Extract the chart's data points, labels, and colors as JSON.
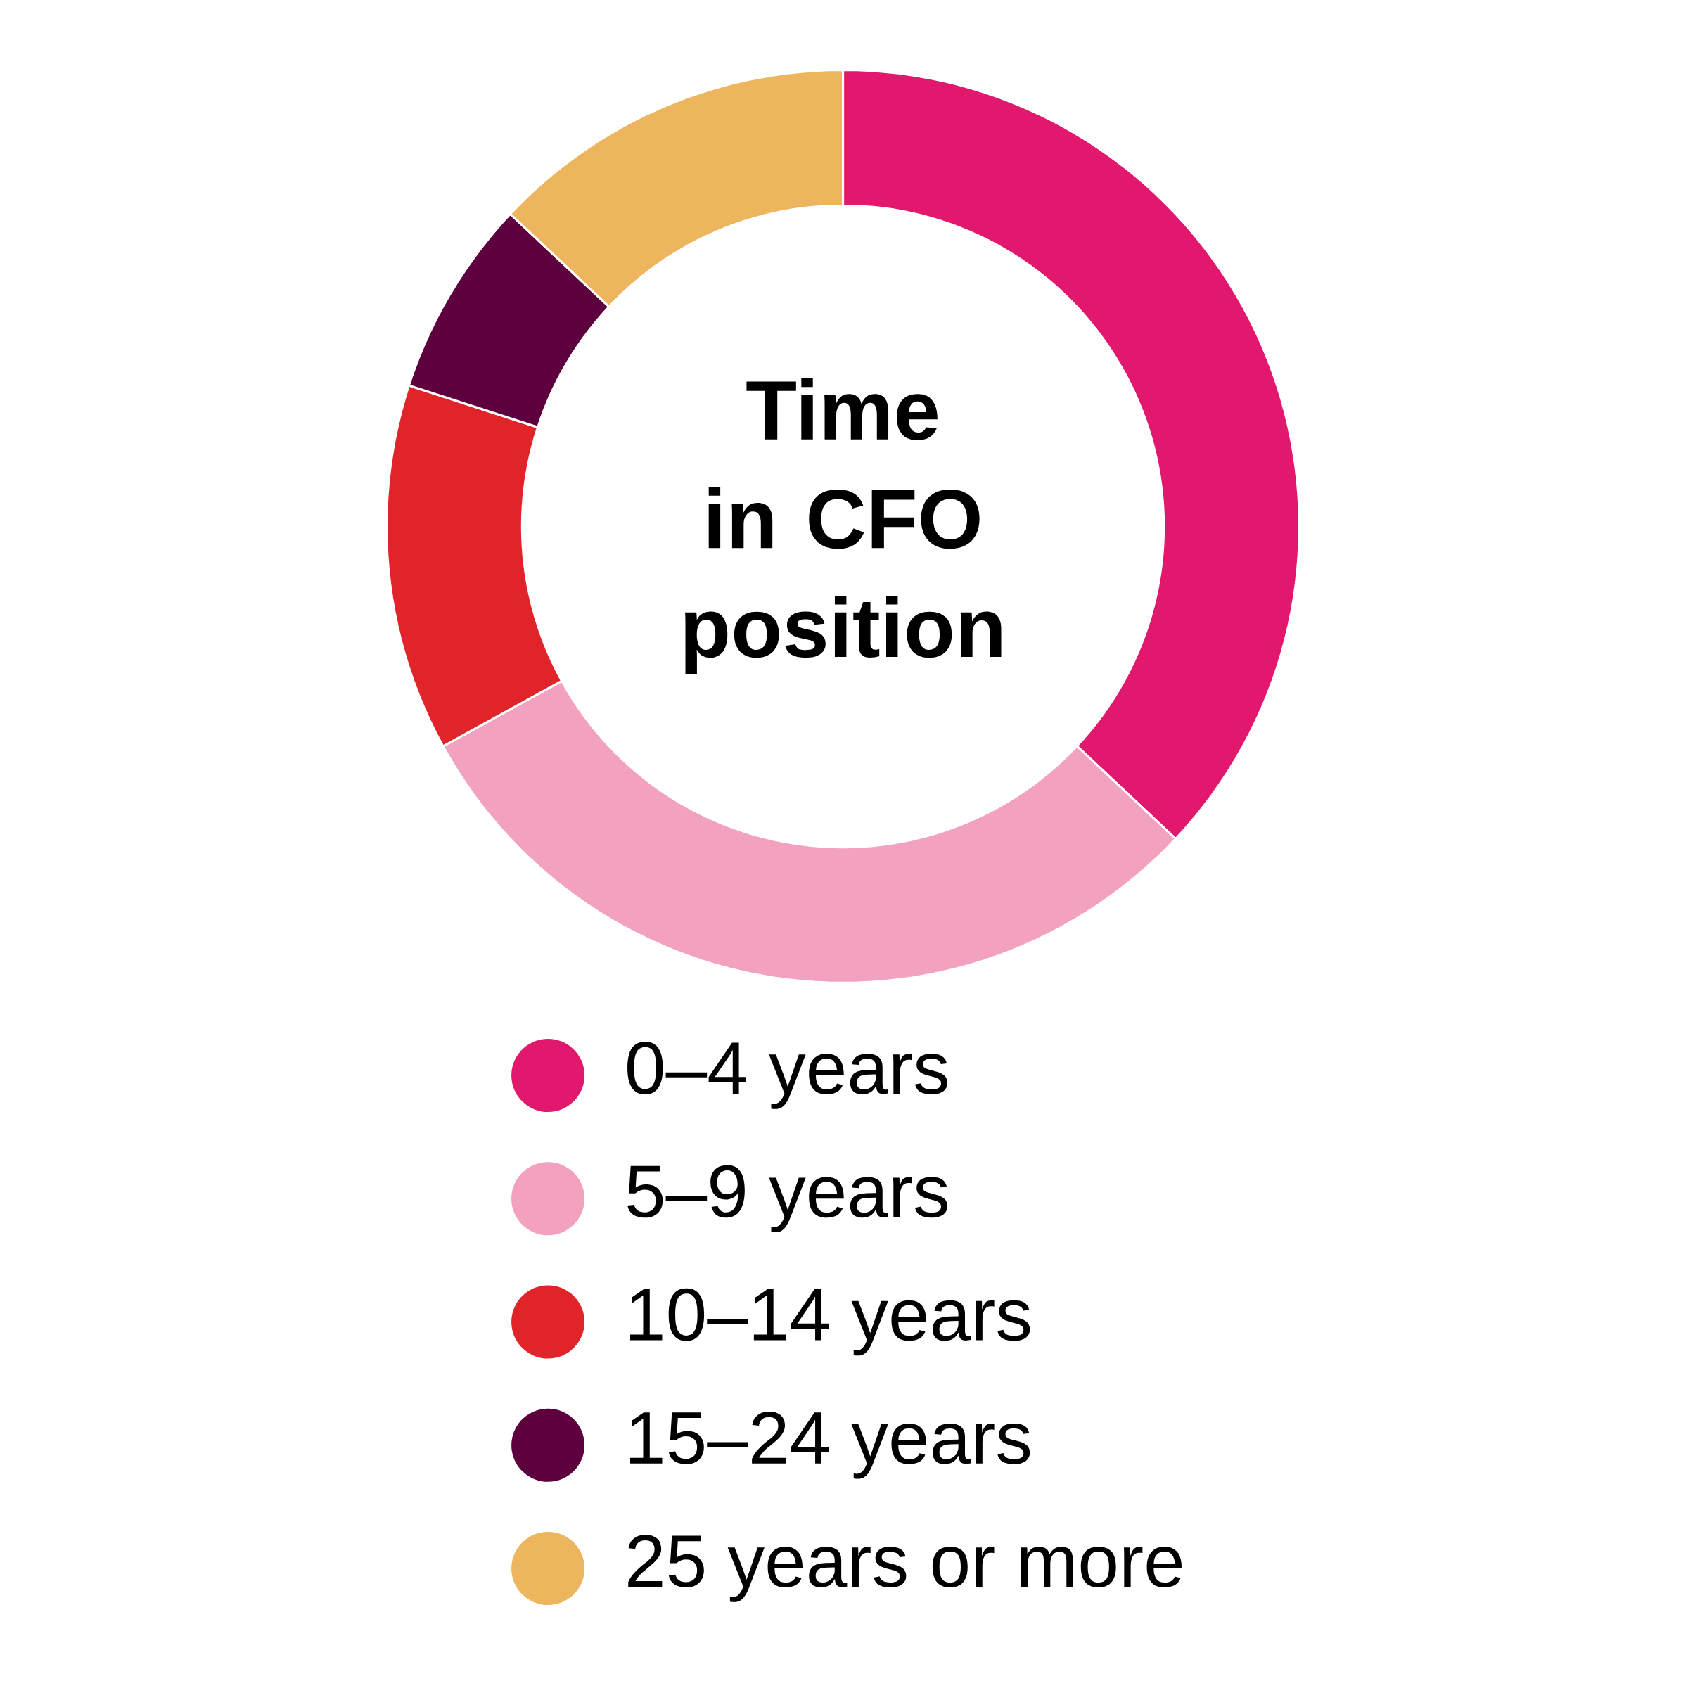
{
  "chart_data": {
    "type": "donut",
    "title": "Time in CFO position",
    "categories": [
      "0–4 years",
      "5–9 years",
      "10–14 years",
      "15–24 years",
      "25 years or more"
    ],
    "values": [
      37,
      30,
      13,
      7,
      13
    ],
    "colors": [
      "#e2176e",
      "#f3a1c0",
      "#e12429",
      "#5e003d",
      "#edb55d"
    ],
    "legend": "bottom"
  }
}
